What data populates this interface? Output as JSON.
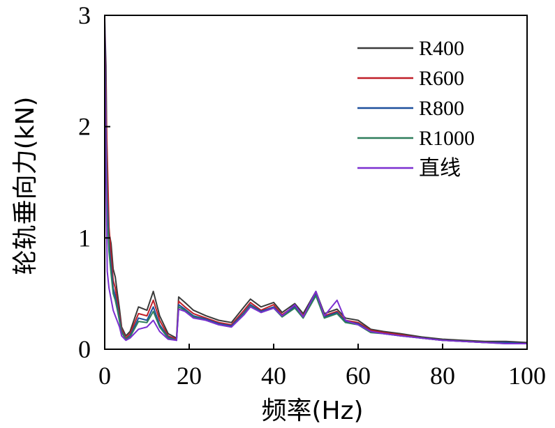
{
  "chart_data": {
    "type": "line",
    "title": "",
    "xlabel": "频率(Hz)",
    "ylabel": "轮轨垂向力(kN)",
    "xlim": [
      0,
      100
    ],
    "ylim": [
      0,
      3
    ],
    "xticks": [
      0,
      20,
      40,
      60,
      80,
      100
    ],
    "xtick_labels": [
      "0",
      "20",
      "40",
      "60",
      "80",
      "100"
    ],
    "yticks": [
      0,
      1,
      2,
      3
    ],
    "ytick_labels": [
      "0",
      "1",
      "2",
      "3"
    ],
    "grid": false,
    "legend_position": "top-right",
    "series": [
      {
        "name": "R400",
        "color": "#3a3a3a",
        "x": [
          0,
          0.3,
          0.6,
          1,
          1.5,
          2,
          2.5,
          3,
          3.5,
          4,
          5,
          6,
          8,
          10,
          11.5,
          13,
          15,
          17,
          17.5,
          19,
          21,
          24,
          27,
          30,
          33,
          34.5,
          37,
          40,
          42,
          45,
          47,
          50,
          52,
          55,
          57,
          60,
          63,
          66,
          70,
          75,
          80,
          85,
          90,
          95,
          100
        ],
        "y": [
          2.95,
          2.55,
          1.45,
          1.05,
          0.95,
          0.72,
          0.65,
          0.5,
          0.36,
          0.2,
          0.12,
          0.16,
          0.38,
          0.35,
          0.52,
          0.3,
          0.14,
          0.1,
          0.47,
          0.42,
          0.35,
          0.3,
          0.26,
          0.24,
          0.38,
          0.45,
          0.38,
          0.42,
          0.33,
          0.41,
          0.32,
          0.52,
          0.32,
          0.36,
          0.28,
          0.26,
          0.18,
          0.16,
          0.14,
          0.11,
          0.09,
          0.08,
          0.07,
          0.07,
          0.06
        ]
      },
      {
        "name": "R600",
        "color": "#c01f28",
        "x": [
          0,
          0.3,
          0.6,
          1,
          1.5,
          2,
          2.5,
          3,
          3.5,
          4,
          5,
          6,
          8,
          10,
          11.5,
          13,
          15,
          17,
          17.5,
          19,
          21,
          24,
          27,
          30,
          33,
          34.5,
          37,
          40,
          42,
          45,
          47,
          50,
          52,
          55,
          57,
          60,
          63,
          66,
          70,
          75,
          80,
          85,
          90,
          95,
          100
        ],
        "y": [
          2.85,
          2.2,
          1.75,
          1.1,
          0.85,
          0.62,
          0.55,
          0.42,
          0.3,
          0.18,
          0.1,
          0.14,
          0.32,
          0.3,
          0.44,
          0.26,
          0.12,
          0.09,
          0.43,
          0.38,
          0.32,
          0.28,
          0.24,
          0.22,
          0.35,
          0.42,
          0.35,
          0.4,
          0.31,
          0.39,
          0.3,
          0.5,
          0.3,
          0.34,
          0.26,
          0.24,
          0.17,
          0.15,
          0.13,
          0.1,
          0.08,
          0.07,
          0.06,
          0.06,
          0.05
        ]
      },
      {
        "name": "R800",
        "color": "#1d4f9c",
        "x": [
          0,
          0.3,
          0.6,
          1,
          1.5,
          2,
          2.5,
          3,
          3.5,
          4,
          5,
          6,
          8,
          10,
          11.5,
          13,
          15,
          17,
          17.5,
          19,
          21,
          24,
          27,
          30,
          33,
          34.5,
          37,
          40,
          42,
          45,
          47,
          50,
          52,
          55,
          57,
          60,
          63,
          66,
          70,
          75,
          80,
          85,
          90,
          95,
          100
        ],
        "y": [
          2.8,
          2.0,
          1.35,
          0.95,
          0.75,
          0.55,
          0.48,
          0.38,
          0.27,
          0.16,
          0.09,
          0.12,
          0.28,
          0.26,
          0.38,
          0.22,
          0.11,
          0.08,
          0.4,
          0.36,
          0.3,
          0.27,
          0.23,
          0.21,
          0.33,
          0.4,
          0.34,
          0.38,
          0.3,
          0.38,
          0.29,
          0.49,
          0.29,
          0.33,
          0.25,
          0.23,
          0.16,
          0.14,
          0.12,
          0.1,
          0.08,
          0.07,
          0.06,
          0.06,
          0.05
        ]
      },
      {
        "name": "R1000",
        "color": "#2e7d5b",
        "x": [
          0,
          0.3,
          0.6,
          1,
          1.5,
          2,
          2.5,
          3,
          3.5,
          4,
          5,
          6,
          8,
          10,
          11.5,
          13,
          15,
          17,
          17.5,
          19,
          21,
          24,
          27,
          30,
          33,
          34.5,
          37,
          40,
          42,
          45,
          47,
          50,
          52,
          55,
          57,
          60,
          63,
          66,
          70,
          75,
          80,
          85,
          90,
          95,
          100
        ],
        "y": [
          2.75,
          1.9,
          1.25,
          0.88,
          0.68,
          0.5,
          0.44,
          0.35,
          0.25,
          0.15,
          0.09,
          0.11,
          0.25,
          0.24,
          0.34,
          0.2,
          0.1,
          0.08,
          0.38,
          0.35,
          0.29,
          0.26,
          0.22,
          0.2,
          0.32,
          0.39,
          0.33,
          0.37,
          0.29,
          0.37,
          0.28,
          0.48,
          0.28,
          0.32,
          0.24,
          0.22,
          0.15,
          0.14,
          0.12,
          0.1,
          0.08,
          0.07,
          0.06,
          0.05,
          0.05
        ]
      },
      {
        "name": "直线",
        "color": "#7b2fd0",
        "x": [
          0,
          0.3,
          0.6,
          1,
          1.5,
          2,
          2.5,
          3,
          3.5,
          4,
          5,
          6,
          8,
          10,
          11.5,
          13,
          15,
          17,
          17.5,
          19,
          21,
          24,
          27,
          30,
          33,
          34.5,
          37,
          40,
          42,
          45,
          47,
          50,
          52,
          55,
          57,
          60,
          63,
          66,
          70,
          75,
          80,
          85,
          90,
          95,
          100
        ],
        "y": [
          3.0,
          1.6,
          0.7,
          0.55,
          0.45,
          0.35,
          0.3,
          0.25,
          0.2,
          0.12,
          0.08,
          0.1,
          0.18,
          0.2,
          0.26,
          0.16,
          0.09,
          0.08,
          0.36,
          0.34,
          0.28,
          0.26,
          0.22,
          0.2,
          0.31,
          0.38,
          0.33,
          0.37,
          0.3,
          0.4,
          0.29,
          0.52,
          0.3,
          0.44,
          0.26,
          0.22,
          0.16,
          0.14,
          0.12,
          0.1,
          0.08,
          0.07,
          0.06,
          0.05,
          0.05
        ]
      }
    ]
  }
}
